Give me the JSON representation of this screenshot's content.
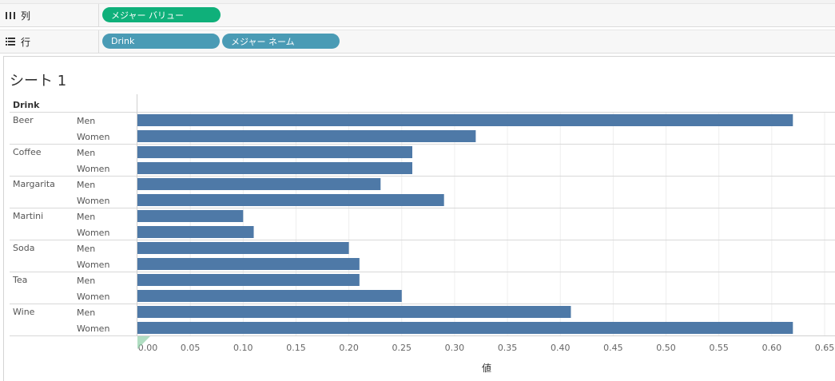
{
  "shelves": {
    "columns": {
      "label": "列",
      "pills": [
        "メジャー バリュー"
      ]
    },
    "rows": {
      "label": "行",
      "pills": [
        "Drink",
        "メジャー ネーム"
      ]
    }
  },
  "sheet": {
    "title": "シート 1"
  },
  "colors": {
    "bar": "#4e79a7",
    "pill_green": "#0fb07a",
    "pill_teal": "#4a9bb5"
  },
  "chart_data": {
    "type": "bar",
    "orientation": "horizontal",
    "row_header": "Drink",
    "xlabel": "値",
    "xlim": [
      0,
      0.65
    ],
    "xticks": [
      "0.00",
      "0.05",
      "0.10",
      "0.15",
      "0.20",
      "0.25",
      "0.30",
      "0.35",
      "0.40",
      "0.45",
      "0.50",
      "0.55",
      "0.60",
      "0.65"
    ],
    "categories": [
      "Beer",
      "Coffee",
      "Margarita",
      "Martini",
      "Soda",
      "Tea",
      "Wine"
    ],
    "series": [
      {
        "name": "Men",
        "values": [
          0.62,
          0.26,
          0.23,
          0.1,
          0.2,
          0.21,
          0.41
        ]
      },
      {
        "name": "Women",
        "values": [
          0.32,
          0.26,
          0.29,
          0.11,
          0.21,
          0.25,
          0.62
        ]
      }
    ]
  }
}
